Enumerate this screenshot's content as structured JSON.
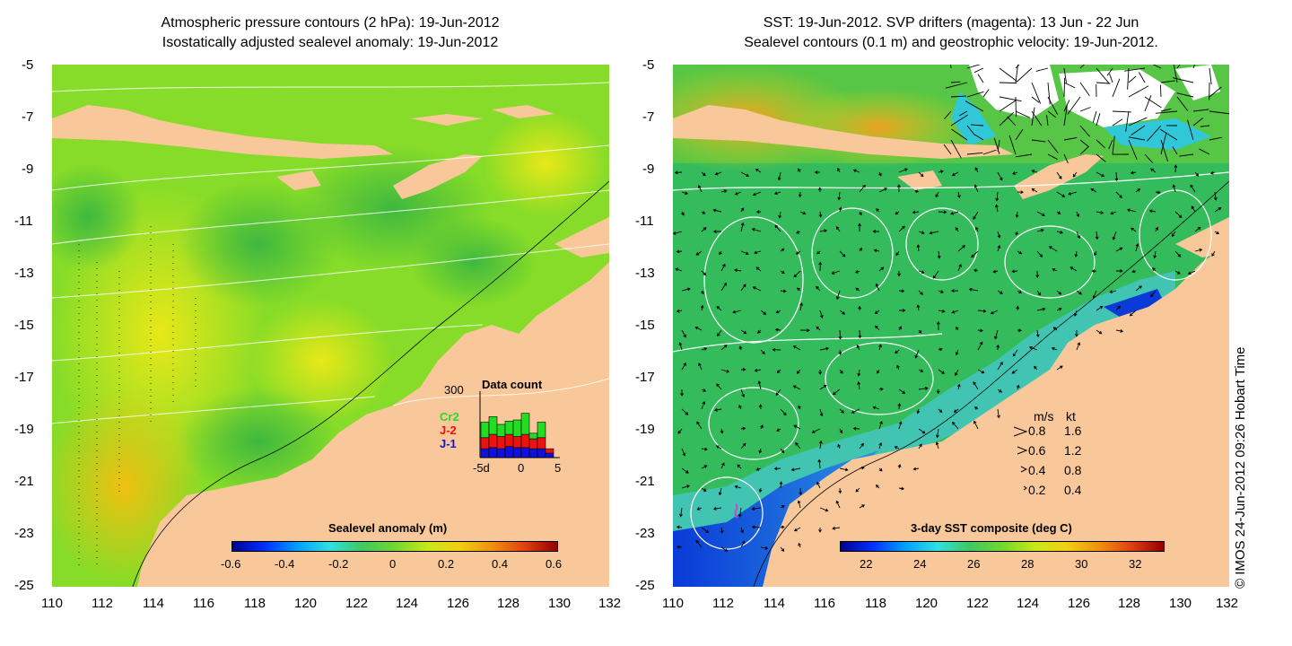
{
  "left_panel": {
    "title_line1": "Atmospheric pressure contours (2 hPa): 19-Jun-2012",
    "title_line2": "Isostatically adjusted sealevel anomaly: 19-Jun-2012",
    "lat_ticks": [
      "-5",
      "-7",
      "-9",
      "-11",
      "-13",
      "-15",
      "-17",
      "-19",
      "-21",
      "-23",
      "-25"
    ],
    "lon_ticks": [
      "110",
      "112",
      "114",
      "116",
      "118",
      "120",
      "122",
      "124",
      "126",
      "128",
      "130",
      "132"
    ],
    "colorbar": {
      "label": "Sealevel anomaly (m)",
      "ticks": [
        "-0.6",
        "-0.4",
        "-0.2",
        "0",
        "0.2",
        "0.4",
        "0.6"
      ],
      "range": [
        -0.6,
        0.6
      ]
    },
    "data_count": {
      "title": "Data count",
      "ymax_label": "300",
      "x_ticks": [
        "-5d",
        "0",
        "5"
      ],
      "legend": [
        {
          "name": "Cr2",
          "color": "#22dd22"
        },
        {
          "name": "J-2",
          "color": "#ee1111"
        },
        {
          "name": "J-1",
          "color": "#1111dd"
        }
      ],
      "bars": [
        {
          "j1": 40,
          "j2": 50,
          "cr2": 70
        },
        {
          "j1": 45,
          "j2": 60,
          "cr2": 80
        },
        {
          "j1": 40,
          "j2": 55,
          "cr2": 55
        },
        {
          "j1": 50,
          "j2": 55,
          "cr2": 60
        },
        {
          "j1": 45,
          "j2": 50,
          "cr2": 75
        },
        {
          "j1": 45,
          "j2": 60,
          "cr2": 95
        },
        {
          "j1": 40,
          "j2": 45,
          "cr2": 25
        },
        {
          "j1": 40,
          "j2": 50,
          "cr2": 70
        },
        {
          "j1": 20,
          "j2": 20,
          "cr2": 0
        }
      ]
    }
  },
  "right_panel": {
    "title_line1": "SST: 19-Jun-2012. SVP drifters (magenta): 13 Jun - 22 Jun",
    "title_line2": "Sealevel contours (0.1 m) and geostrophic velocity: 19-Jun-2012.",
    "lat_ticks": [
      "-5",
      "-7",
      "-9",
      "-11",
      "-13",
      "-15",
      "-17",
      "-19",
      "-21",
      "-23",
      "-25"
    ],
    "lon_ticks": [
      "110",
      "112",
      "114",
      "116",
      "118",
      "120",
      "122",
      "124",
      "126",
      "128",
      "130",
      "132"
    ],
    "colorbar": {
      "label": "3-day SST composite (deg C)",
      "ticks": [
        "22",
        "24",
        "26",
        "28",
        "30",
        "32"
      ],
      "range": [
        21.5,
        33.5
      ]
    },
    "velocity_key": {
      "header_ms": "m/s",
      "header_kt": "kt",
      "rows": [
        {
          "ms": "0.8",
          "kt": "1.6"
        },
        {
          "ms": "0.6",
          "kt": "1.2"
        },
        {
          "ms": "0.4",
          "kt": "0.8"
        },
        {
          "ms": "0.2",
          "kt": "0.4"
        }
      ]
    }
  },
  "credit": "© IMOS 24-Jun-2012 09:26 Hobart Time",
  "colors": {
    "land": "#f9c89a",
    "ocean_left": "#7edc2a",
    "ocean_right": "#35c05a",
    "contour_white": "#ffffff",
    "contour_black": "#000000",
    "drifter": "#cc44cc"
  }
}
